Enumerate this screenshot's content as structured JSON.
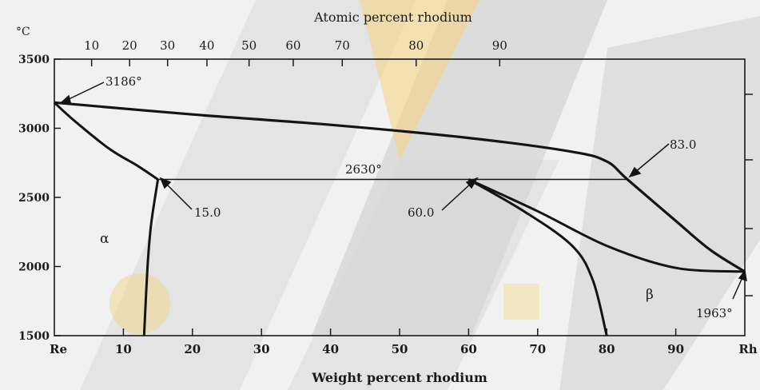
{
  "chart_data": {
    "type": "phase-diagram",
    "top_axis_title": "Atomic percent rhodium",
    "bottom_axis_title": "Weight percent rhodium",
    "left_axis_unit": "°C",
    "top_ticks": [
      "10",
      "20",
      "30",
      "40",
      "50",
      "60",
      "70",
      "80",
      "90"
    ],
    "top_tick_wt": [
      5.4,
      10.9,
      16.4,
      22.1,
      28.2,
      34.6,
      41.7,
      52.4,
      64.5
    ],
    "bottom_ticks": [
      "Re",
      "10",
      "20",
      "30",
      "40",
      "50",
      "60",
      "70",
      "80",
      "90",
      "Rh"
    ],
    "y_ticks": [
      "3500",
      "3000",
      "2500",
      "2000",
      "1500"
    ],
    "xlim": [
      0,
      100
    ],
    "ylim": [
      1500,
      3500
    ],
    "annotations": {
      "re_melting": "3186°",
      "peritectic_temp": "2630°",
      "alpha_limit": "15.0",
      "liquid_comp": "60.0",
      "beta_limit": "83.0",
      "rh_melting": "1963°"
    },
    "phase_labels": {
      "alpha": "α",
      "beta": "β"
    },
    "curves": {
      "liquidus": [
        [
          0,
          3186
        ],
        [
          20,
          3100
        ],
        [
          40,
          3025
        ],
        [
          60,
          2930
        ],
        [
          75,
          2830
        ],
        [
          80,
          2760
        ],
        [
          83,
          2630
        ],
        [
          90,
          2330
        ],
        [
          95,
          2120
        ],
        [
          100,
          1963
        ]
      ],
      "solidus": [
        [
          0,
          3186
        ],
        [
          3,
          3050
        ],
        [
          8,
          2850
        ],
        [
          12,
          2730
        ],
        [
          15,
          2630
        ]
      ],
      "peritectic": [
        [
          15,
          2630
        ],
        [
          83,
          2630
        ]
      ],
      "alpha_solvus": [
        [
          15,
          2630
        ],
        [
          14,
          2300
        ],
        [
          13.5,
          2000
        ],
        [
          13,
          1500
        ]
      ],
      "beta_solvus": [
        [
          60,
          2630
        ],
        [
          68,
          2400
        ],
        [
          75,
          2150
        ],
        [
          78,
          1900
        ],
        [
          80,
          1500
        ]
      ],
      "upper_liquid_boundary": [
        [
          60,
          2630
        ],
        [
          70,
          2400
        ],
        [
          80,
          2150
        ],
        [
          90,
          1990
        ],
        [
          100,
          1963
        ]
      ]
    }
  }
}
